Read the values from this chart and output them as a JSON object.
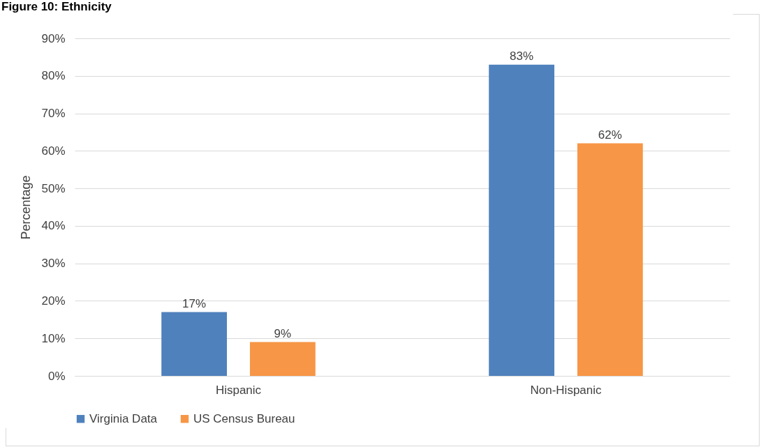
{
  "chart_data": {
    "type": "bar",
    "title": "Figure 10: Ethnicity",
    "ylabel": "Percentage",
    "categories": [
      "Hispanic",
      "Non-Hispanic"
    ],
    "series": [
      {
        "name": "Virginia Data",
        "color": "#4f81bd",
        "values": [
          17,
          83
        ],
        "value_labels": [
          "17%",
          "83%"
        ]
      },
      {
        "name": "US Census Bureau",
        "color": "#f79646",
        "values": [
          9,
          62
        ],
        "value_labels": [
          "9%",
          "62%"
        ]
      }
    ],
    "ylim": [
      0,
      90
    ],
    "yticks": [
      {
        "value": 0,
        "label": "0%"
      },
      {
        "value": 10,
        "label": "10%"
      },
      {
        "value": 20,
        "label": "20%"
      },
      {
        "value": 30,
        "label": "30%"
      },
      {
        "value": 40,
        "label": "40%"
      },
      {
        "value": 50,
        "label": "50%"
      },
      {
        "value": 60,
        "label": "60%"
      },
      {
        "value": 70,
        "label": "70%"
      },
      {
        "value": 80,
        "label": "80%"
      },
      {
        "value": 90,
        "label": "90%"
      }
    ],
    "grid": "y",
    "legend": "bottom"
  }
}
